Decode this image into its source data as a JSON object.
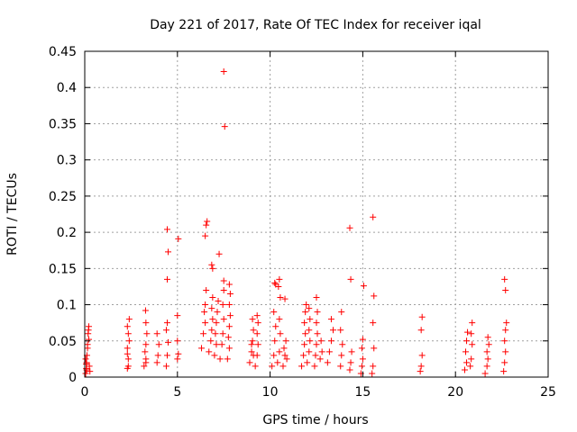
{
  "chart_data": {
    "type": "scatter",
    "title": "Day 221 of 2017, Rate Of TEC Index for receiver iqal",
    "xlabel": "GPS time / hours",
    "ylabel": "ROTI / TECUs",
    "xlim": [
      0,
      25
    ],
    "ylim": [
      0,
      0.45
    ],
    "x_ticks": [
      0,
      5,
      10,
      15,
      20,
      25
    ],
    "y_ticks": [
      0,
      0.05,
      0.1,
      0.15,
      0.2,
      0.25,
      0.3,
      0.35,
      0.4,
      0.45
    ],
    "x_tick_labels": [
      "0",
      "5",
      "10",
      "15",
      "20",
      "25"
    ],
    "y_tick_labels": [
      "0",
      "0.05",
      "0.1",
      "0.15",
      "0.2",
      "0.25",
      "0.3",
      "0.35",
      "0.4",
      "0.45"
    ],
    "grid": true,
    "marker": "+",
    "colors": {
      "marker": "#ff0000",
      "grid": "#a0a0a0",
      "axis": "#000000"
    },
    "points": [
      [
        0.05,
        0.005
      ],
      [
        0.08,
        0.012
      ],
      [
        0.1,
        0.02
      ],
      [
        0.12,
        0.03
      ],
      [
        0.15,
        0.045
      ],
      [
        0.18,
        0.06
      ],
      [
        0.2,
        0.065
      ],
      [
        0.22,
        0.07
      ],
      [
        0.1,
        0.01
      ],
      [
        0.25,
        0.015
      ],
      [
        0.05,
        0.025
      ],
      [
        0.28,
        0.008
      ],
      [
        0.15,
        0.04
      ],
      [
        0.22,
        0.052
      ],
      [
        0.08,
        0.018
      ],
      [
        2.3,
        0.012
      ],
      [
        2.35,
        0.025
      ],
      [
        2.3,
        0.04
      ],
      [
        2.4,
        0.05
      ],
      [
        2.35,
        0.06
      ],
      [
        2.3,
        0.07
      ],
      [
        2.4,
        0.08
      ],
      [
        2.35,
        0.015
      ],
      [
        2.3,
        0.032
      ],
      [
        3.2,
        0.015
      ],
      [
        3.3,
        0.025
      ],
      [
        3.25,
        0.035
      ],
      [
        3.3,
        0.045
      ],
      [
        3.35,
        0.06
      ],
      [
        3.3,
        0.075
      ],
      [
        3.28,
        0.092
      ],
      [
        3.3,
        0.02
      ],
      [
        3.9,
        0.02
      ],
      [
        3.95,
        0.03
      ],
      [
        4.0,
        0.045
      ],
      [
        3.9,
        0.06
      ],
      [
        4.4,
        0.015
      ],
      [
        4.45,
        0.03
      ],
      [
        4.5,
        0.048
      ],
      [
        4.4,
        0.065
      ],
      [
        4.45,
        0.075
      ],
      [
        4.45,
        0.135
      ],
      [
        4.5,
        0.173
      ],
      [
        4.45,
        0.204
      ],
      [
        5.0,
        0.025
      ],
      [
        5.05,
        0.032
      ],
      [
        5.0,
        0.05
      ],
      [
        5.0,
        0.085
      ],
      [
        5.05,
        0.191
      ],
      [
        6.3,
        0.04
      ],
      [
        6.4,
        0.06
      ],
      [
        6.5,
        0.075
      ],
      [
        6.45,
        0.09
      ],
      [
        6.5,
        0.1
      ],
      [
        6.55,
        0.12
      ],
      [
        6.5,
        0.195
      ],
      [
        6.55,
        0.21
      ],
      [
        6.6,
        0.215
      ],
      [
        6.7,
        0.035
      ],
      [
        6.8,
        0.05
      ],
      [
        6.85,
        0.065
      ],
      [
        6.9,
        0.08
      ],
      [
        6.85,
        0.095
      ],
      [
        6.9,
        0.11
      ],
      [
        6.85,
        0.155
      ],
      [
        6.9,
        0.15
      ],
      [
        7.0,
        0.03
      ],
      [
        7.1,
        0.045
      ],
      [
        7.05,
        0.06
      ],
      [
        7.1,
        0.075
      ],
      [
        7.15,
        0.09
      ],
      [
        7.2,
        0.105
      ],
      [
        7.25,
        0.17
      ],
      [
        7.3,
        0.025
      ],
      [
        7.4,
        0.045
      ],
      [
        7.45,
        0.06
      ],
      [
        7.5,
        0.08
      ],
      [
        7.45,
        0.1
      ],
      [
        7.5,
        0.12
      ],
      [
        7.5,
        0.133
      ],
      [
        7.55,
        0.346
      ],
      [
        7.5,
        0.422
      ],
      [
        7.7,
        0.025
      ],
      [
        7.8,
        0.04
      ],
      [
        7.75,
        0.055
      ],
      [
        7.8,
        0.07
      ],
      [
        7.85,
        0.085
      ],
      [
        7.8,
        0.1
      ],
      [
        7.85,
        0.115
      ],
      [
        7.8,
        0.128
      ],
      [
        8.9,
        0.02
      ],
      [
        9.0,
        0.035
      ],
      [
        9.05,
        0.05
      ],
      [
        9.1,
        0.065
      ],
      [
        9.05,
        0.08
      ],
      [
        9.0,
        0.045
      ],
      [
        9.1,
        0.03
      ],
      [
        9.2,
        0.015
      ],
      [
        9.3,
        0.03
      ],
      [
        9.35,
        0.045
      ],
      [
        9.3,
        0.06
      ],
      [
        9.35,
        0.075
      ],
      [
        9.3,
        0.085
      ],
      [
        10.1,
        0.015
      ],
      [
        10.2,
        0.03
      ],
      [
        10.25,
        0.05
      ],
      [
        10.3,
        0.07
      ],
      [
        10.2,
        0.09
      ],
      [
        10.25,
        0.13
      ],
      [
        10.3,
        0.128
      ],
      [
        10.4,
        0.02
      ],
      [
        10.5,
        0.035
      ],
      [
        10.55,
        0.06
      ],
      [
        10.5,
        0.08
      ],
      [
        10.55,
        0.11
      ],
      [
        10.5,
        0.135
      ],
      [
        10.45,
        0.125
      ],
      [
        10.7,
        0.015
      ],
      [
        10.8,
        0.03
      ],
      [
        10.85,
        0.05
      ],
      [
        10.8,
        0.108
      ],
      [
        10.75,
        0.04
      ],
      [
        10.9,
        0.025
      ],
      [
        11.7,
        0.015
      ],
      [
        11.8,
        0.03
      ],
      [
        11.85,
        0.045
      ],
      [
        11.9,
        0.06
      ],
      [
        11.85,
        0.075
      ],
      [
        11.9,
        0.09
      ],
      [
        11.95,
        0.1
      ],
      [
        12.0,
        0.02
      ],
      [
        12.1,
        0.035
      ],
      [
        12.15,
        0.05
      ],
      [
        12.1,
        0.065
      ],
      [
        12.15,
        0.08
      ],
      [
        12.1,
        0.095
      ],
      [
        12.4,
        0.015
      ],
      [
        12.45,
        0.03
      ],
      [
        12.5,
        0.045
      ],
      [
        12.55,
        0.06
      ],
      [
        12.5,
        0.075
      ],
      [
        12.55,
        0.09
      ],
      [
        12.5,
        0.11
      ],
      [
        12.7,
        0.025
      ],
      [
        12.8,
        0.035
      ],
      [
        12.75,
        0.05
      ],
      [
        13.1,
        0.02
      ],
      [
        13.2,
        0.035
      ],
      [
        13.3,
        0.05
      ],
      [
        13.4,
        0.065
      ],
      [
        13.3,
        0.08
      ],
      [
        13.8,
        0.015
      ],
      [
        13.85,
        0.03
      ],
      [
        13.9,
        0.045
      ],
      [
        13.8,
        0.065
      ],
      [
        13.85,
        0.09
      ],
      [
        14.3,
        0.01
      ],
      [
        14.35,
        0.02
      ],
      [
        14.4,
        0.035
      ],
      [
        14.35,
        0.135
      ],
      [
        14.3,
        0.206
      ],
      [
        14.9,
        0.005
      ],
      [
        14.95,
        0.015
      ],
      [
        15.0,
        0.025
      ],
      [
        14.95,
        0.04
      ],
      [
        15.0,
        0.052
      ],
      [
        15.05,
        0.126
      ],
      [
        15.5,
        0.005
      ],
      [
        15.55,
        0.015
      ],
      [
        15.6,
        0.04
      ],
      [
        15.55,
        0.075
      ],
      [
        15.6,
        0.112
      ],
      [
        15.55,
        0.221
      ],
      [
        18.1,
        0.008
      ],
      [
        18.15,
        0.015
      ],
      [
        18.2,
        0.03
      ],
      [
        18.15,
        0.065
      ],
      [
        18.2,
        0.083
      ],
      [
        20.5,
        0.01
      ],
      [
        20.6,
        0.02
      ],
      [
        20.55,
        0.035
      ],
      [
        20.6,
        0.05
      ],
      [
        20.65,
        0.062
      ],
      [
        20.8,
        0.015
      ],
      [
        20.85,
        0.025
      ],
      [
        20.9,
        0.045
      ],
      [
        20.85,
        0.06
      ],
      [
        20.9,
        0.075
      ],
      [
        21.6,
        0.005
      ],
      [
        21.7,
        0.015
      ],
      [
        21.75,
        0.025
      ],
      [
        21.7,
        0.035
      ],
      [
        21.8,
        0.045
      ],
      [
        21.75,
        0.055
      ],
      [
        22.6,
        0.008
      ],
      [
        22.65,
        0.02
      ],
      [
        22.7,
        0.035
      ],
      [
        22.65,
        0.05
      ],
      [
        22.7,
        0.065
      ],
      [
        22.75,
        0.075
      ],
      [
        22.7,
        0.12
      ],
      [
        22.65,
        0.135
      ]
    ]
  }
}
